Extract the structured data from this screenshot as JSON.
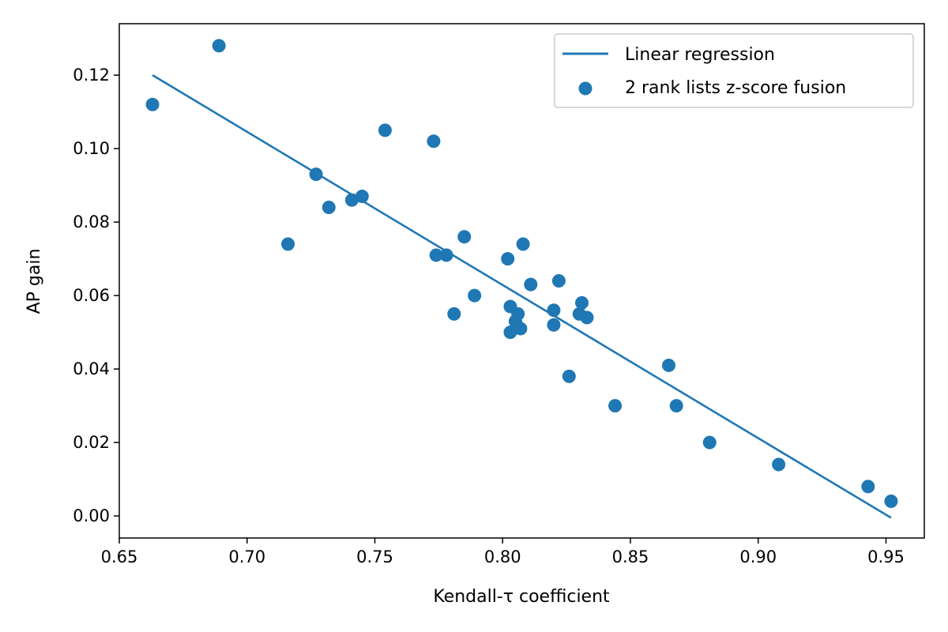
{
  "chart_data": {
    "type": "scatter",
    "title": "",
    "xlabel": "Kendall-τ coefficient",
    "ylabel": "AP gain",
    "xlim": [
      0.65,
      0.965
    ],
    "ylim": [
      -0.006,
      0.134
    ],
    "x_ticks": [
      0.65,
      0.7,
      0.75,
      0.8,
      0.85,
      0.9,
      0.95
    ],
    "x_tick_labels": [
      "0.65",
      "0.70",
      "0.75",
      "0.80",
      "0.85",
      "0.90",
      "0.95"
    ],
    "y_ticks": [
      0.0,
      0.02,
      0.04,
      0.06,
      0.08,
      0.1,
      0.12
    ],
    "y_tick_labels": [
      "0.00",
      "0.02",
      "0.04",
      "0.06",
      "0.08",
      "0.10",
      "0.12"
    ],
    "grid": false,
    "legend_position": "top-right",
    "color": "#1f77b4",
    "series": [
      {
        "name": "Linear regression",
        "kind": "line",
        "x": [
          0.663,
          0.952
        ],
        "y": [
          0.12,
          -0.0005
        ]
      },
      {
        "name": "2 rank lists z-score fusion",
        "kind": "scatter",
        "x": [
          0.663,
          0.689,
          0.716,
          0.727,
          0.732,
          0.741,
          0.745,
          0.754,
          0.773,
          0.774,
          0.778,
          0.781,
          0.785,
          0.789,
          0.802,
          0.803,
          0.803,
          0.805,
          0.806,
          0.807,
          0.808,
          0.811,
          0.82,
          0.82,
          0.822,
          0.826,
          0.83,
          0.831,
          0.833,
          0.844,
          0.865,
          0.868,
          0.881,
          0.908,
          0.943,
          0.952
        ],
        "y": [
          0.112,
          0.128,
          0.074,
          0.093,
          0.084,
          0.086,
          0.087,
          0.105,
          0.102,
          0.071,
          0.071,
          0.055,
          0.076,
          0.06,
          0.07,
          0.057,
          0.05,
          0.053,
          0.055,
          0.051,
          0.074,
          0.063,
          0.056,
          0.052,
          0.064,
          0.038,
          0.055,
          0.058,
          0.054,
          0.03,
          0.041,
          0.03,
          0.02,
          0.014,
          0.008,
          0.004
        ]
      }
    ]
  }
}
